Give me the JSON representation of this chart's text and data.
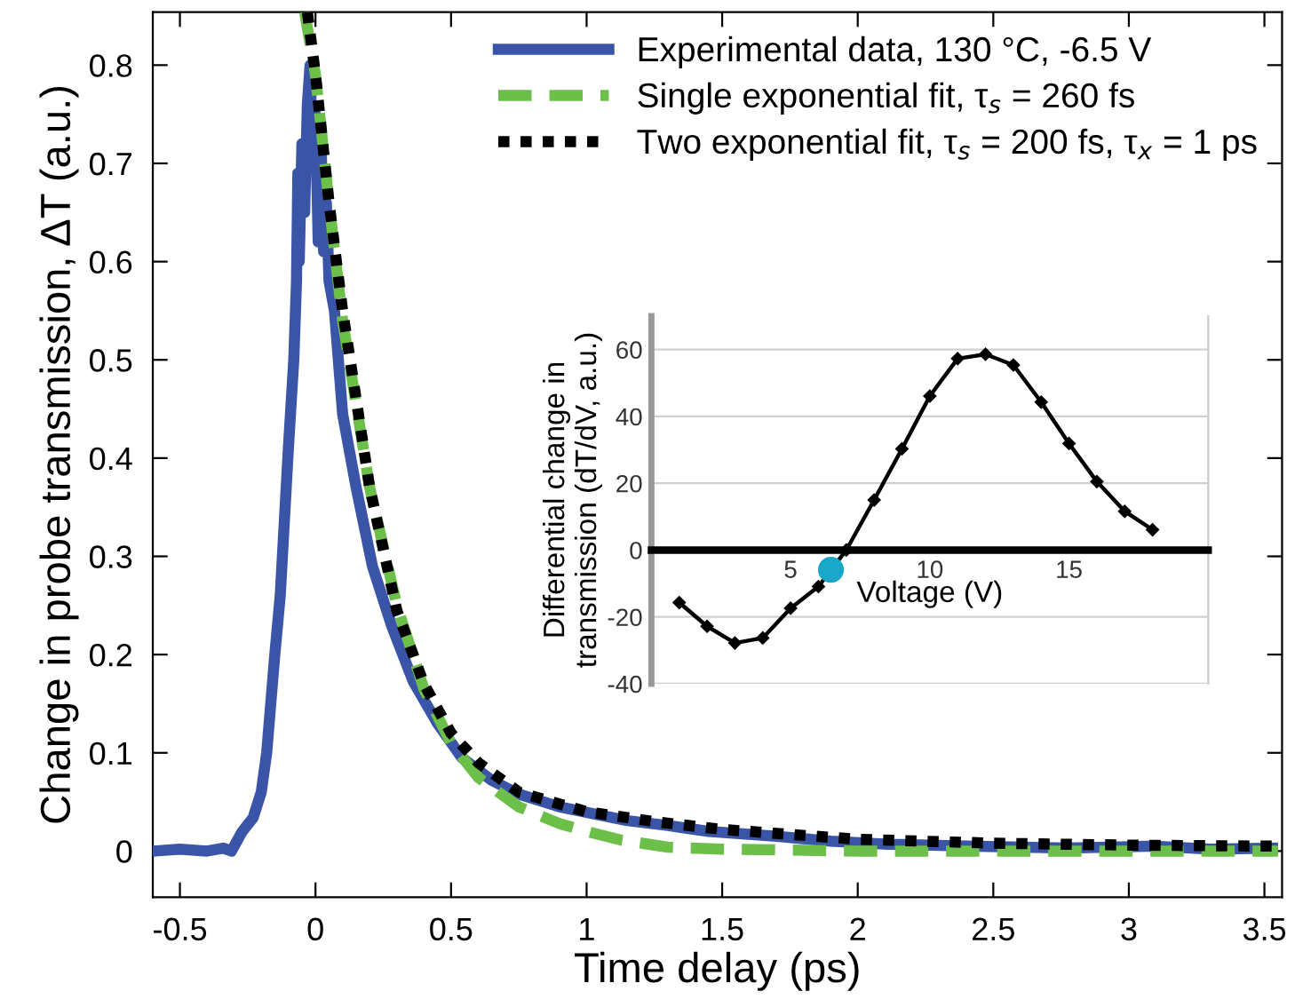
{
  "chart_data": [
    {
      "type": "line",
      "xlabel": "Time delay (ps)",
      "ylabel": "Change in probe transmission, ΔT (a.u.)",
      "xlim": [
        -0.6,
        3.565
      ],
      "ylim": [
        -0.047,
        0.854
      ],
      "xticks": [
        -0.5,
        0,
        0.5,
        1,
        1.5,
        2,
        2.5,
        3,
        3.5
      ],
      "yticks": [
        0,
        0.1,
        0.2,
        0.3,
        0.4,
        0.5,
        0.6,
        0.7,
        0.8
      ],
      "grid": false,
      "legend": "top right",
      "series": [
        {
          "name": "Experimental data, 130 °C, -6.5 V",
          "color": "#3a55a8",
          "line_style": "solid",
          "x": [
            -0.6,
            -0.5,
            -0.4,
            -0.34,
            -0.31,
            -0.27,
            -0.23,
            -0.2,
            -0.18,
            -0.15,
            -0.13,
            -0.11,
            -0.1,
            -0.08,
            -0.07,
            -0.065,
            -0.06,
            -0.05,
            -0.04,
            -0.03,
            -0.02,
            -0.01,
            0.0,
            0.01,
            0.02,
            0.03,
            0.04,
            0.05,
            0.07,
            0.1,
            0.15,
            0.21,
            0.28,
            0.36,
            0.45,
            0.54,
            0.65,
            0.75,
            0.9,
            1.15,
            1.3,
            1.45,
            1.7,
            1.9,
            2.11,
            2.4,
            2.77,
            3.1,
            3.3,
            3.53
          ],
          "values": [
            0.0,
            0.002,
            0.0,
            0.003,
            0.0,
            0.02,
            0.034,
            0.06,
            0.1,
            0.2,
            0.26,
            0.36,
            0.41,
            0.5,
            0.58,
            0.69,
            0.6,
            0.72,
            0.65,
            0.76,
            0.8,
            0.7,
            0.75,
            0.62,
            0.73,
            0.61,
            0.66,
            0.58,
            0.55,
            0.445,
            0.37,
            0.29,
            0.23,
            0.173,
            0.13,
            0.095,
            0.072,
            0.058,
            0.045,
            0.031,
            0.026,
            0.02,
            0.015,
            0.01,
            0.007,
            0.005,
            0.003,
            0.005,
            0.002,
            0.003
          ]
        },
        {
          "name": "Single exponential fit, τ$_{s}$ = 260 fs",
          "color": "#6cc04a",
          "line_style": "dashed",
          "x": [
            -0.04,
            0.0,
            0.05,
            0.1,
            0.2,
            0.3,
            0.4,
            0.5,
            0.6,
            0.75,
            0.9,
            1.0,
            1.13,
            1.3,
            1.5,
            1.75,
            2.0,
            2.5,
            3.0,
            3.55
          ],
          "values": [
            0.854,
            0.79,
            0.66,
            0.54,
            0.37,
            0.25,
            0.165,
            0.11,
            0.075,
            0.045,
            0.028,
            0.02,
            0.011,
            0.004,
            0.002,
            0.001,
            0.0,
            0.0,
            0.0,
            0.0
          ]
        },
        {
          "name": "Two exponential fit, τ$_{s}$ = 200 fs, τ$_{x}$ = 1 ps",
          "color": "#000000",
          "line_style": "dotted",
          "x": [
            -0.03,
            0.0,
            0.05,
            0.1,
            0.2,
            0.3,
            0.4,
            0.5,
            0.6,
            0.75,
            1.0,
            1.25,
            1.5,
            2.0,
            2.5,
            3.0,
            3.55
          ],
          "values": [
            0.854,
            0.79,
            0.66,
            0.55,
            0.37,
            0.245,
            0.17,
            0.12,
            0.09,
            0.06,
            0.04,
            0.03,
            0.022,
            0.012,
            0.008,
            0.006,
            0.005
          ]
        }
      ]
    },
    {
      "type": "line",
      "xlabel": "Voltage (V)",
      "ylabel": "Differential change in\ntransmission (dT/dV, a.u.)",
      "xlim": [
        0,
        20
      ],
      "ylim": [
        -40,
        70
      ],
      "xticks": [
        5,
        10,
        15
      ],
      "yticks": [
        -40,
        -20,
        0,
        20,
        40,
        60
      ],
      "grid": "y",
      "series": [
        {
          "color": "#000000",
          "marker": "diamond",
          "x": [
            1,
            2,
            3,
            4,
            5,
            6,
            7,
            8,
            9,
            10,
            11,
            12,
            13,
            14,
            15,
            16,
            17,
            18
          ],
          "values": [
            -15.7,
            -22.8,
            -27.8,
            -26.3,
            -17.4,
            -10.9,
            0,
            15.0,
            30.3,
            46.1,
            57.3,
            58.6,
            55.4,
            44.3,
            31.9,
            20.5,
            11.6,
            6.1
          ]
        },
        {
          "type": "scatter",
          "marker": "circle",
          "color": "#1aa7c9",
          "x": [
            6.45
          ],
          "values": [
            -5.9
          ]
        }
      ]
    }
  ]
}
